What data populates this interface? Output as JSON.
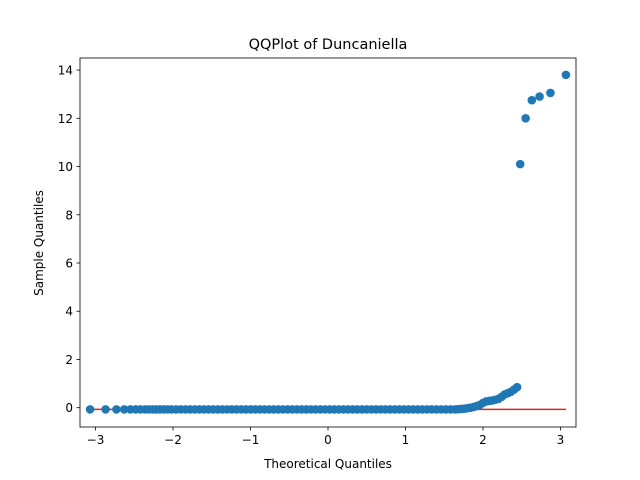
{
  "chart_data": {
    "type": "scatter",
    "title": "QQPlot of Duncaniella",
    "xlabel": "Theoretical Quantiles",
    "ylabel": "Sample Quantiles",
    "xlim": [
      -3.2,
      3.2
    ],
    "ylim": [
      -0.8,
      14.5
    ],
    "xticks": [
      -3,
      -2,
      -1,
      0,
      1,
      2,
      3
    ],
    "xtick_labels": [
      "−3",
      "−2",
      "−1",
      "0",
      "1",
      "2",
      "3"
    ],
    "yticks": [
      0,
      2,
      4,
      6,
      8,
      10,
      12,
      14
    ],
    "ytick_labels": [
      "0",
      "2",
      "4",
      "6",
      "8",
      "10",
      "12",
      "14"
    ],
    "grid": false,
    "marker_color": "#1f77b4",
    "reference_line": {
      "x": [
        -3.07,
        3.07
      ],
      "y": [
        -0.07,
        -0.07
      ],
      "color": "#d62728"
    },
    "series": [
      {
        "points": [
          [
            -3.07,
            -0.07
          ],
          [
            -2.87,
            -0.07
          ],
          [
            -2.73,
            -0.07
          ],
          [
            -2.63,
            -0.07
          ],
          [
            -2.55,
            -0.07
          ],
          [
            -2.48,
            -0.07
          ],
          [
            -2.42,
            -0.07
          ],
          [
            -2.36,
            -0.07
          ],
          [
            -2.31,
            -0.07
          ],
          [
            -2.26,
            -0.07
          ],
          [
            -2.22,
            -0.07
          ],
          [
            -2.17,
            -0.07
          ],
          [
            -2.12,
            -0.07
          ],
          [
            -2.07,
            -0.07
          ],
          [
            -2.02,
            -0.07
          ],
          [
            -1.96,
            -0.07
          ],
          [
            -1.9,
            -0.07
          ],
          [
            -1.84,
            -0.07
          ],
          [
            -1.78,
            -0.07
          ],
          [
            -1.72,
            -0.07
          ],
          [
            -1.66,
            -0.07
          ],
          [
            -1.6,
            -0.07
          ],
          [
            -1.54,
            -0.07
          ],
          [
            -1.48,
            -0.07
          ],
          [
            -1.42,
            -0.07
          ],
          [
            -1.36,
            -0.07
          ],
          [
            -1.3,
            -0.07
          ],
          [
            -1.24,
            -0.07
          ],
          [
            -1.18,
            -0.07
          ],
          [
            -1.12,
            -0.07
          ],
          [
            -1.06,
            -0.07
          ],
          [
            -1.0,
            -0.07
          ],
          [
            -0.94,
            -0.07
          ],
          [
            -0.88,
            -0.07
          ],
          [
            -0.82,
            -0.07
          ],
          [
            -0.76,
            -0.07
          ],
          [
            -0.7,
            -0.07
          ],
          [
            -0.64,
            -0.07
          ],
          [
            -0.58,
            -0.07
          ],
          [
            -0.52,
            -0.07
          ],
          [
            -0.46,
            -0.07
          ],
          [
            -0.4,
            -0.07
          ],
          [
            -0.34,
            -0.07
          ],
          [
            -0.28,
            -0.07
          ],
          [
            -0.22,
            -0.07
          ],
          [
            -0.16,
            -0.07
          ],
          [
            -0.1,
            -0.07
          ],
          [
            -0.04,
            -0.07
          ],
          [
            0.02,
            -0.07
          ],
          [
            0.08,
            -0.07
          ],
          [
            0.14,
            -0.07
          ],
          [
            0.2,
            -0.07
          ],
          [
            0.26,
            -0.07
          ],
          [
            0.32,
            -0.07
          ],
          [
            0.38,
            -0.07
          ],
          [
            0.44,
            -0.07
          ],
          [
            0.5,
            -0.07
          ],
          [
            0.56,
            -0.07
          ],
          [
            0.62,
            -0.07
          ],
          [
            0.68,
            -0.07
          ],
          [
            0.74,
            -0.07
          ],
          [
            0.8,
            -0.07
          ],
          [
            0.86,
            -0.07
          ],
          [
            0.92,
            -0.07
          ],
          [
            0.98,
            -0.07
          ],
          [
            1.04,
            -0.07
          ],
          [
            1.1,
            -0.07
          ],
          [
            1.16,
            -0.07
          ],
          [
            1.22,
            -0.07
          ],
          [
            1.28,
            -0.07
          ],
          [
            1.34,
            -0.07
          ],
          [
            1.4,
            -0.07
          ],
          [
            1.46,
            -0.07
          ],
          [
            1.52,
            -0.07
          ],
          [
            1.58,
            -0.07
          ],
          [
            1.64,
            -0.07
          ],
          [
            1.68,
            -0.06
          ],
          [
            1.72,
            -0.05
          ],
          [
            1.76,
            -0.04
          ],
          [
            1.8,
            -0.02
          ],
          [
            1.84,
            0.0
          ],
          [
            1.88,
            0.03
          ],
          [
            1.92,
            0.07
          ],
          [
            1.96,
            0.12
          ],
          [
            2.0,
            0.2
          ],
          [
            2.04,
            0.26
          ],
          [
            2.08,
            0.28
          ],
          [
            2.12,
            0.3
          ],
          [
            2.16,
            0.33
          ],
          [
            2.2,
            0.37
          ],
          [
            2.24,
            0.45
          ],
          [
            2.28,
            0.55
          ],
          [
            2.32,
            0.6
          ],
          [
            2.36,
            0.66
          ],
          [
            2.4,
            0.75
          ],
          [
            2.44,
            0.85
          ],
          [
            2.48,
            10.1
          ],
          [
            2.55,
            12.0
          ],
          [
            2.63,
            12.75
          ],
          [
            2.73,
            12.9
          ],
          [
            2.87,
            13.05
          ],
          [
            3.07,
            13.8
          ]
        ]
      }
    ]
  }
}
